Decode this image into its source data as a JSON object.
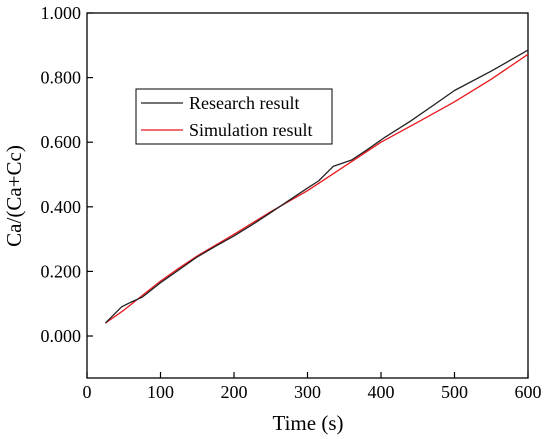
{
  "chart_data": {
    "type": "line",
    "title": "",
    "xlabel": "Time (s)",
    "ylabel": "Ca/(Ca+Cc)",
    "xlim": [
      0,
      600
    ],
    "ylim": [
      -0.13,
      1.0
    ],
    "x_ticks": [
      0,
      100,
      200,
      300,
      400,
      500,
      600
    ],
    "x_tick_labels": [
      "0",
      "100",
      "200",
      "300",
      "400",
      "500",
      "600"
    ],
    "y_ticks": [
      0.0,
      0.2,
      0.4,
      0.6,
      0.8,
      1.0
    ],
    "y_tick_labels": [
      "0.000",
      "0.200",
      "0.400",
      "0.600",
      "0.800",
      "1.000"
    ],
    "grid": false,
    "legend_position": "upper-left",
    "series": [
      {
        "name": "Research result",
        "color": "#222222",
        "points": [
          [
            25,
            0.04
          ],
          [
            47,
            0.09
          ],
          [
            60,
            0.105
          ],
          [
            75,
            0.12
          ],
          [
            100,
            0.165
          ],
          [
            125,
            0.205
          ],
          [
            150,
            0.245
          ],
          [
            175,
            0.278
          ],
          [
            200,
            0.31
          ],
          [
            225,
            0.345
          ],
          [
            250,
            0.382
          ],
          [
            275,
            0.42
          ],
          [
            300,
            0.458
          ],
          [
            315,
            0.48
          ],
          [
            335,
            0.525
          ],
          [
            360,
            0.545
          ],
          [
            380,
            0.575
          ],
          [
            405,
            0.615
          ],
          [
            440,
            0.665
          ],
          [
            475,
            0.72
          ],
          [
            500,
            0.76
          ],
          [
            550,
            0.82
          ],
          [
            600,
            0.885
          ]
        ]
      },
      {
        "name": "Simulation result",
        "color": "#e8171d",
        "points": [
          [
            25,
            0.04
          ],
          [
            50,
            0.08
          ],
          [
            75,
            0.125
          ],
          [
            100,
            0.17
          ],
          [
            125,
            0.21
          ],
          [
            150,
            0.248
          ],
          [
            200,
            0.315
          ],
          [
            250,
            0.385
          ],
          [
            300,
            0.45
          ],
          [
            350,
            0.525
          ],
          [
            400,
            0.6
          ],
          [
            450,
            0.662
          ],
          [
            500,
            0.725
          ],
          [
            550,
            0.795
          ],
          [
            600,
            0.872
          ]
        ]
      }
    ]
  }
}
